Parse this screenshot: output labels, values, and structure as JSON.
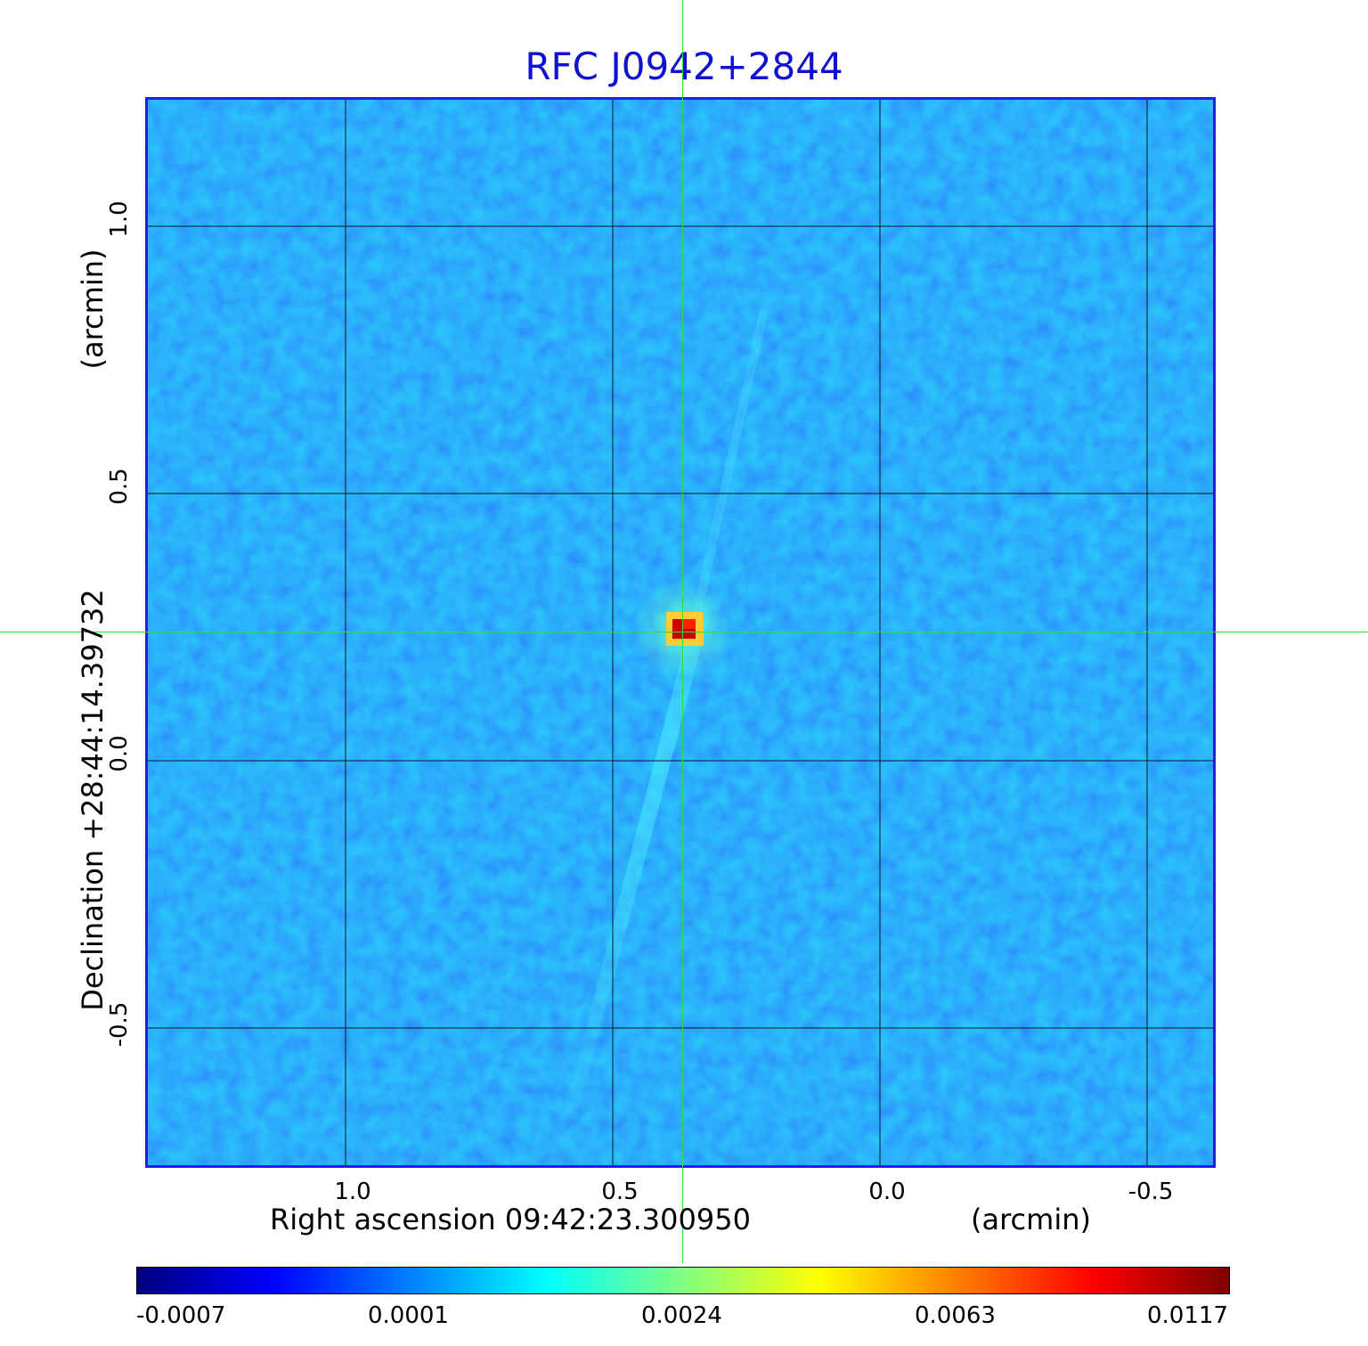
{
  "title": "RFC J0942+2844",
  "x_axis": {
    "label": "Right ascension  09:42:23.300950",
    "unit": "(arcmin)",
    "ticks": [
      "1.0",
      "0.5",
      "0.0",
      "-0.5"
    ]
  },
  "y_axis": {
    "label": "Declination  +28:44:14.39732",
    "unit": "(arcmin)",
    "ticks": [
      "1.0",
      "0.5",
      "0.0",
      "-0.5"
    ]
  },
  "colorbar": {
    "colormap": "jet",
    "ticks": [
      "-0.0007",
      "0.0001",
      "0.0024",
      "0.0063",
      "0.0117"
    ]
  },
  "image": {
    "source_peak_color": "#cc0000",
    "background_color": "#1a8cff",
    "crosshair_color": "#33dd33",
    "frame_color": "#1f1fe0"
  }
}
